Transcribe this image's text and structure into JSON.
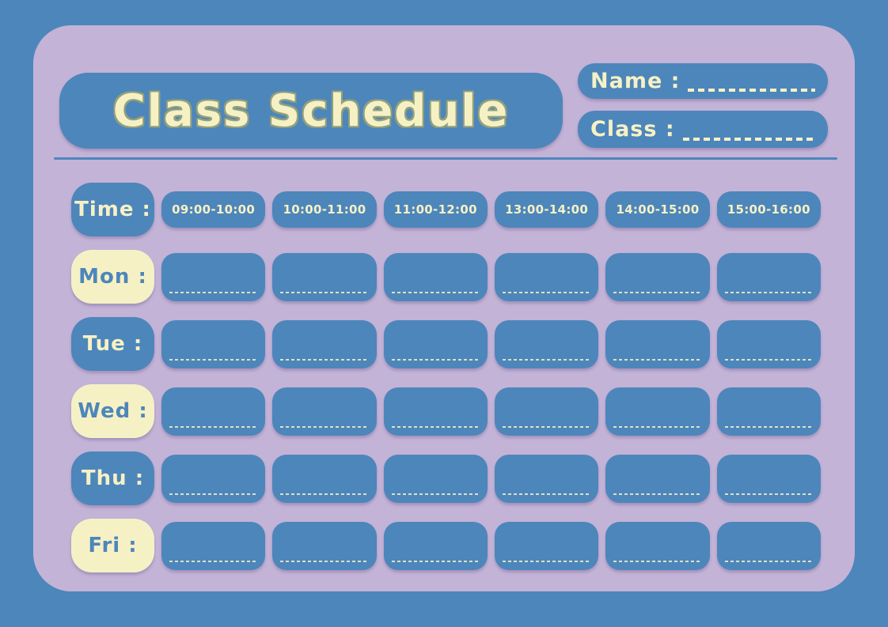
{
  "title": "Class Schedule",
  "name_field": {
    "label": "Name :",
    "value": ""
  },
  "class_field": {
    "label": "Class :",
    "value": ""
  },
  "schedule": {
    "time_header_label": "Time :",
    "time_slots": [
      "09:00-10:00",
      "10:00-11:00",
      "11:00-12:00",
      "13:00-14:00",
      "14:00-15:00",
      "15:00-16:00"
    ],
    "day_rows": [
      {
        "label": "Mon :",
        "variant": "cream",
        "cells": [
          "",
          "",
          "",
          "",
          "",
          ""
        ]
      },
      {
        "label": "Tue :",
        "variant": "blue",
        "cells": [
          "",
          "",
          "",
          "",
          "",
          ""
        ]
      },
      {
        "label": "Wed :",
        "variant": "cream",
        "cells": [
          "",
          "",
          "",
          "",
          "",
          ""
        ]
      },
      {
        "label": "Thu :",
        "variant": "blue",
        "cells": [
          "",
          "",
          "",
          "",
          "",
          ""
        ]
      },
      {
        "label": "Fri :",
        "variant": "cream",
        "cells": [
          "",
          "",
          "",
          "",
          "",
          ""
        ]
      }
    ]
  },
  "colors": {
    "background_blue": "#4d86bb",
    "card_purple": "#c3b3d7",
    "box_blue": "#4d86bb",
    "cream": "#f6f1c5",
    "title_outline": "#93a07b"
  }
}
